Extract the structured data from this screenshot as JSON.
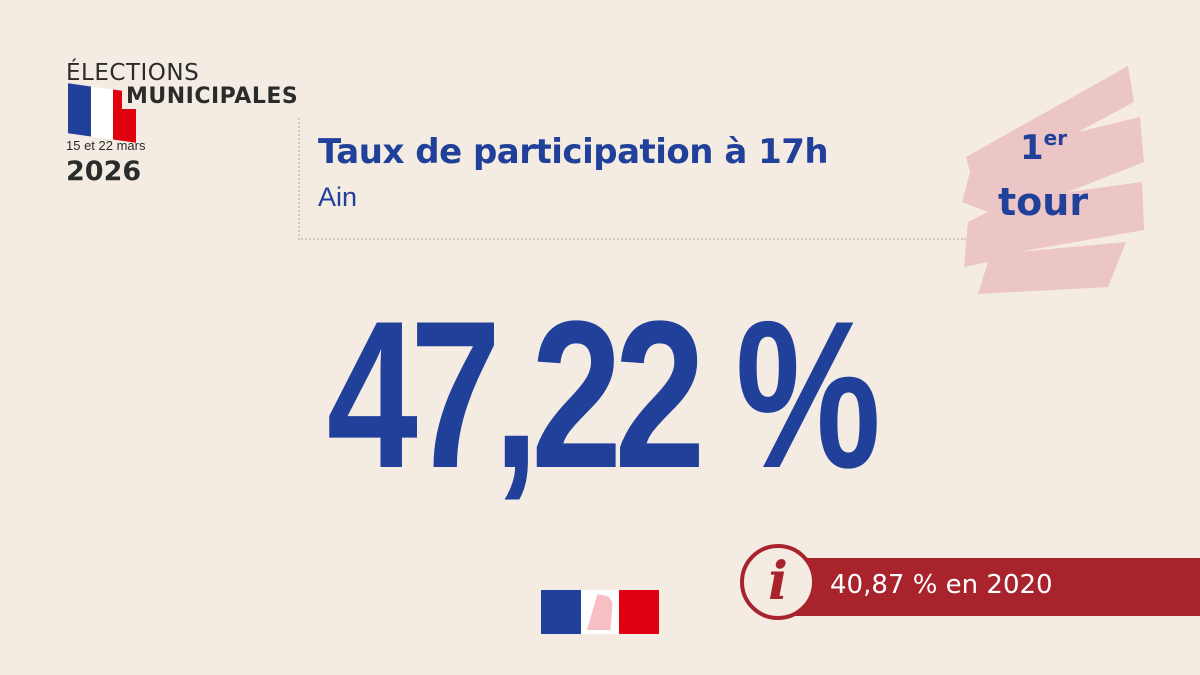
{
  "logo": {
    "line1": "ÉLECTIONS",
    "line2": "MUNICIPALES",
    "dates": "15 et 22 mars",
    "year": "2026"
  },
  "header": {
    "title": "Taux de participation à 17h",
    "subtitle": "Ain"
  },
  "badge": {
    "round_number": "1",
    "round_suffix": "er",
    "round_word": "tour"
  },
  "result": {
    "value": "47,22 %"
  },
  "info": {
    "icon": "info-icon",
    "text": "40,87 % en 2020"
  },
  "colors": {
    "blue": "#21409a",
    "red": "#a9232d",
    "background": "#f4ece3",
    "badge_pink": "#ecc5c6"
  }
}
